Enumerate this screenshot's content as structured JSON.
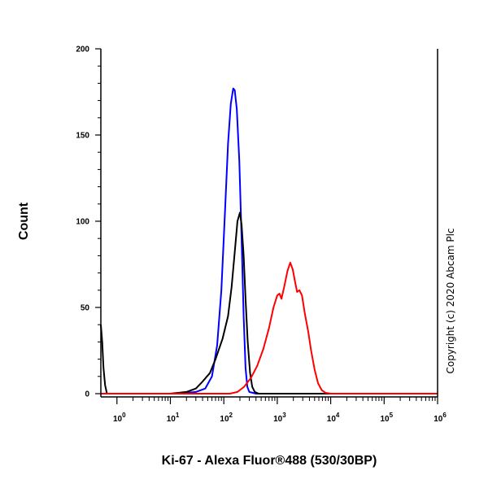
{
  "chart_data": {
    "type": "line",
    "xlabel": "Ki-67 - Alexa Fluor®488 (530/30BP)",
    "ylabel": "Count",
    "xscale": "log",
    "xlim": [
      0.5,
      1000000
    ],
    "ylim": [
      0,
      200
    ],
    "yticks": [
      0,
      50,
      100,
      150,
      200
    ],
    "xticks": [
      {
        "base": "10",
        "exp": "0",
        "value": 1
      },
      {
        "base": "10",
        "exp": "1",
        "value": 10
      },
      {
        "base": "10",
        "exp": "2",
        "value": 100
      },
      {
        "base": "10",
        "exp": "3",
        "value": 1000
      },
      {
        "base": "10",
        "exp": "4",
        "value": 10000
      },
      {
        "base": "10",
        "exp": "5",
        "value": 100000
      },
      {
        "base": "10",
        "exp": "6",
        "value": 1000000
      }
    ],
    "grid": false,
    "legend": "none",
    "copyright": "Copyright (c) 2020 Abcam Plc",
    "series": [
      {
        "color": "#0000ff",
        "points": [
          [
            0.5,
            0
          ],
          [
            10,
            0
          ],
          [
            20,
            0.5
          ],
          [
            30,
            1
          ],
          [
            45,
            3
          ],
          [
            60,
            10
          ],
          [
            75,
            28
          ],
          [
            90,
            60
          ],
          [
            105,
            105
          ],
          [
            120,
            145
          ],
          [
            135,
            168
          ],
          [
            150,
            177
          ],
          [
            160,
            176
          ],
          [
            175,
            165
          ],
          [
            195,
            135
          ],
          [
            215,
            90
          ],
          [
            235,
            45
          ],
          [
            255,
            15
          ],
          [
            275,
            4
          ],
          [
            300,
            1
          ],
          [
            400,
            0
          ],
          [
            1000000,
            0
          ]
        ]
      },
      {
        "color": "#000000",
        "points": [
          [
            0.5,
            40
          ],
          [
            0.53,
            30
          ],
          [
            0.56,
            15
          ],
          [
            0.6,
            5
          ],
          [
            0.65,
            0
          ],
          [
            10,
            0
          ],
          [
            20,
            1
          ],
          [
            30,
            3
          ],
          [
            40,
            7
          ],
          [
            55,
            12
          ],
          [
            70,
            20
          ],
          [
            95,
            32
          ],
          [
            120,
            45
          ],
          [
            140,
            62
          ],
          [
            160,
            82
          ],
          [
            180,
            100
          ],
          [
            200,
            105
          ],
          [
            215,
            98
          ],
          [
            235,
            80
          ],
          [
            255,
            55
          ],
          [
            280,
            30
          ],
          [
            310,
            12
          ],
          [
            340,
            4
          ],
          [
            380,
            1
          ],
          [
            450,
            0
          ],
          [
            1000000,
            0
          ]
        ]
      },
      {
        "color": "#ff0000",
        "points": [
          [
            0.5,
            0
          ],
          [
            130,
            0
          ],
          [
            180,
            1
          ],
          [
            240,
            4
          ],
          [
            320,
            9
          ],
          [
            420,
            16
          ],
          [
            550,
            26
          ],
          [
            700,
            38
          ],
          [
            850,
            50
          ],
          [
            1000,
            57
          ],
          [
            1100,
            58
          ],
          [
            1200,
            55
          ],
          [
            1350,
            62
          ],
          [
            1550,
            71
          ],
          [
            1750,
            76
          ],
          [
            1950,
            72
          ],
          [
            2150,
            65
          ],
          [
            2350,
            59
          ],
          [
            2600,
            60
          ],
          [
            2900,
            57
          ],
          [
            3300,
            46
          ],
          [
            3800,
            36
          ],
          [
            4300,
            25
          ],
          [
            5000,
            14
          ],
          [
            5800,
            6
          ],
          [
            6800,
            2
          ],
          [
            8000,
            0.5
          ],
          [
            10000,
            0
          ],
          [
            1000000,
            0
          ]
        ]
      }
    ]
  }
}
